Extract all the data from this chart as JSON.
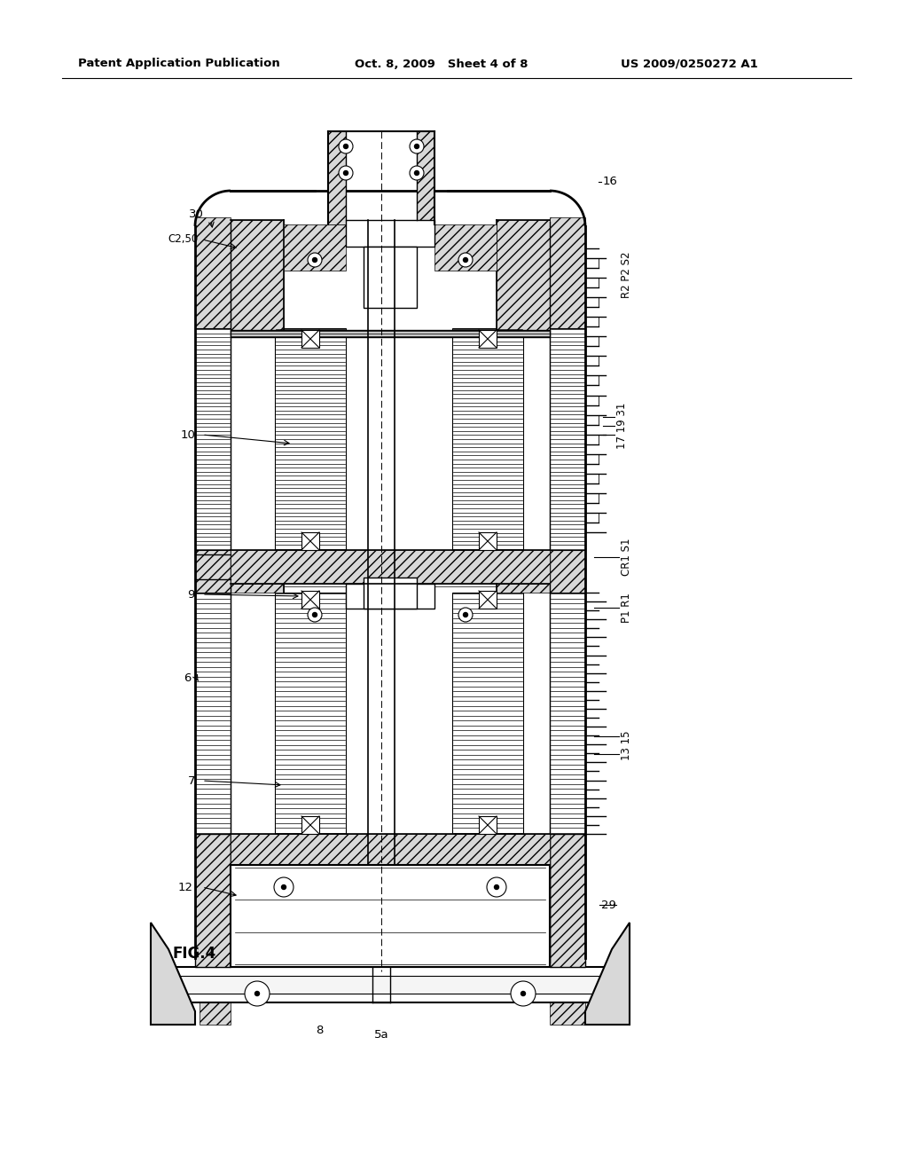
{
  "bg_color": "#ffffff",
  "header_left": "Patent Application Publication",
  "header_center": "Oct. 8, 2009   Sheet 4 of 8",
  "header_right": "US 2009/0250272 A1",
  "fig_label": "FIG.4"
}
